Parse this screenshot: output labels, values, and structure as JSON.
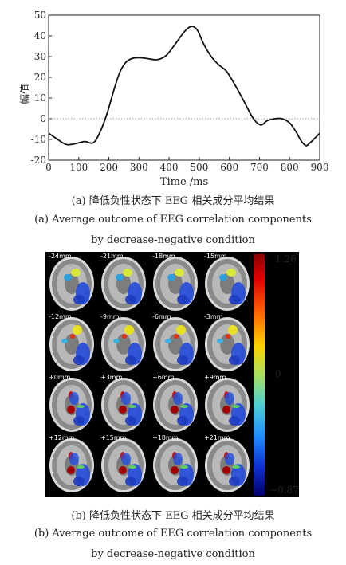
{
  "chart_data": {
    "type": "line",
    "xlabel": "Time /ms",
    "ylabel": "幅值",
    "xlim": [
      0,
      900
    ],
    "ylim": [
      -20,
      50
    ],
    "xticks": [
      0,
      100,
      200,
      300,
      400,
      500,
      600,
      700,
      800,
      900
    ],
    "yticks": [
      -20,
      -10,
      0,
      10,
      20,
      30,
      40,
      50
    ],
    "zero_line": "dotted",
    "series": [
      {
        "x": [
          0,
          30,
          60,
          90,
          120,
          150,
          175,
          195,
          215,
          235,
          255,
          275,
          300,
          330,
          360,
          390,
          420,
          445,
          465,
          480,
          495,
          515,
          540,
          565,
          590,
          620,
          650,
          680,
          705,
          725,
          750,
          775,
          800,
          820,
          840,
          855,
          865,
          880,
          900
        ],
        "y": [
          -7,
          -10,
          -12.5,
          -12,
          -11,
          -11.5,
          -5,
          3,
          13,
          22,
          27,
          29,
          29.5,
          29,
          28.5,
          30.5,
          36,
          41,
          44,
          44.5,
          42.5,
          36,
          30,
          26,
          23,
          16,
          8,
          0,
          -3,
          -1,
          0,
          0,
          -2,
          -6,
          -11,
          -13,
          -12,
          -10,
          -7
        ]
      }
    ]
  },
  "captions": {
    "a_zh": "(a) 降低负性状态下 EEG 相关成分平均结果",
    "a_en_1": "(a) Average outcome of EEG correlation components",
    "a_en_2": "by decrease-negative condition",
    "b_zh": "(b) 降低负性状态下 EEG 相关成分平均结果",
    "b_en_1": "(b) Average outcome of EEG correlation components",
    "b_en_2": "by decrease-negative condition"
  },
  "brain_slices": [
    "-24mm",
    "-21mm",
    "-18mm",
    "-15mm",
    "-12mm",
    "-9mm",
    "-6mm",
    "-3mm",
    "+0mm",
    "+3mm",
    "+6mm",
    "+9mm",
    "+12mm",
    "+15mm",
    "+18mm",
    "+21mm"
  ],
  "colorbar": {
    "max": "1.26",
    "mid": "0",
    "min": "−0.87"
  }
}
